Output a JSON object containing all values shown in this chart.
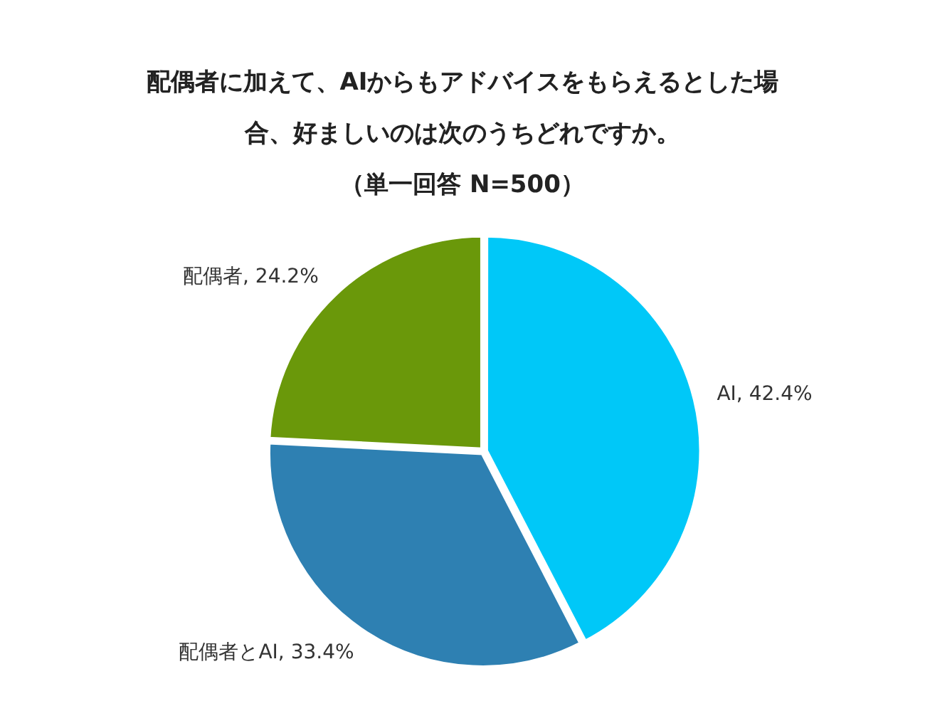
{
  "chart_data": {
    "type": "pie",
    "title": "配偶者に加えて、AIからもアドバイスをもらえるとした場合、好ましいのは次のうちどれですか。",
    "subtitle": "（単一回答 N=500）",
    "categories": [
      "AI",
      "配偶者とAI",
      "配偶者"
    ],
    "values": [
      42.4,
      33.4,
      24.2
    ],
    "value_labels": [
      "42.4%",
      "33.4%",
      "24.2%"
    ],
    "colors": [
      "#00c8f8",
      "#2e80b2",
      "#6a980a"
    ],
    "legend": false
  }
}
